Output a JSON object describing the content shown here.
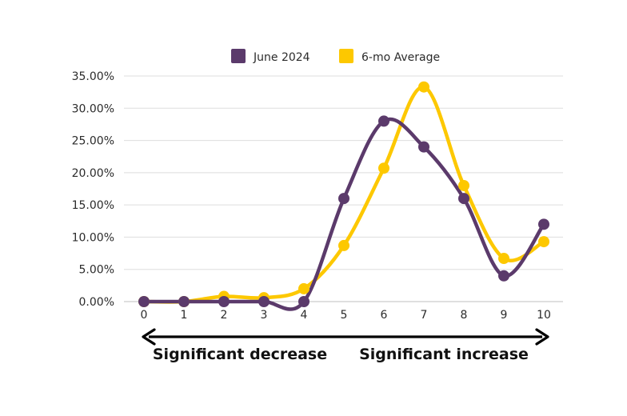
{
  "chart_data": {
    "type": "line",
    "x": [
      0,
      1,
      2,
      3,
      4,
      5,
      6,
      7,
      8,
      9,
      10
    ],
    "x_tick_labels": [
      "0",
      "1",
      "2",
      "3",
      "4",
      "5",
      "6",
      "7",
      "8",
      "9",
      "10"
    ],
    "y_tick_labels": [
      "0.00%",
      "5.00%",
      "10.00%",
      "15.00%",
      "20.00%",
      "25.00%",
      "30.00%",
      "35.00%"
    ],
    "ylim": [
      0,
      35
    ],
    "y_unit": "%",
    "grid": "horizontal",
    "legend_position": "top-center",
    "smooth": true,
    "series": [
      {
        "name": "June 2024",
        "color": "#5b3a6b",
        "values": [
          0,
          0,
          0,
          0,
          0,
          16,
          28,
          24,
          16,
          4,
          12
        ]
      },
      {
        "name": "6-mo Average",
        "color": "#fdc800",
        "values": [
          0,
          0,
          0.8,
          0.6,
          2,
          8.7,
          20.7,
          33.3,
          18,
          6.7,
          9.3
        ]
      }
    ],
    "annotations": {
      "left": "Significant decrease",
      "right": "Significant increase"
    }
  }
}
